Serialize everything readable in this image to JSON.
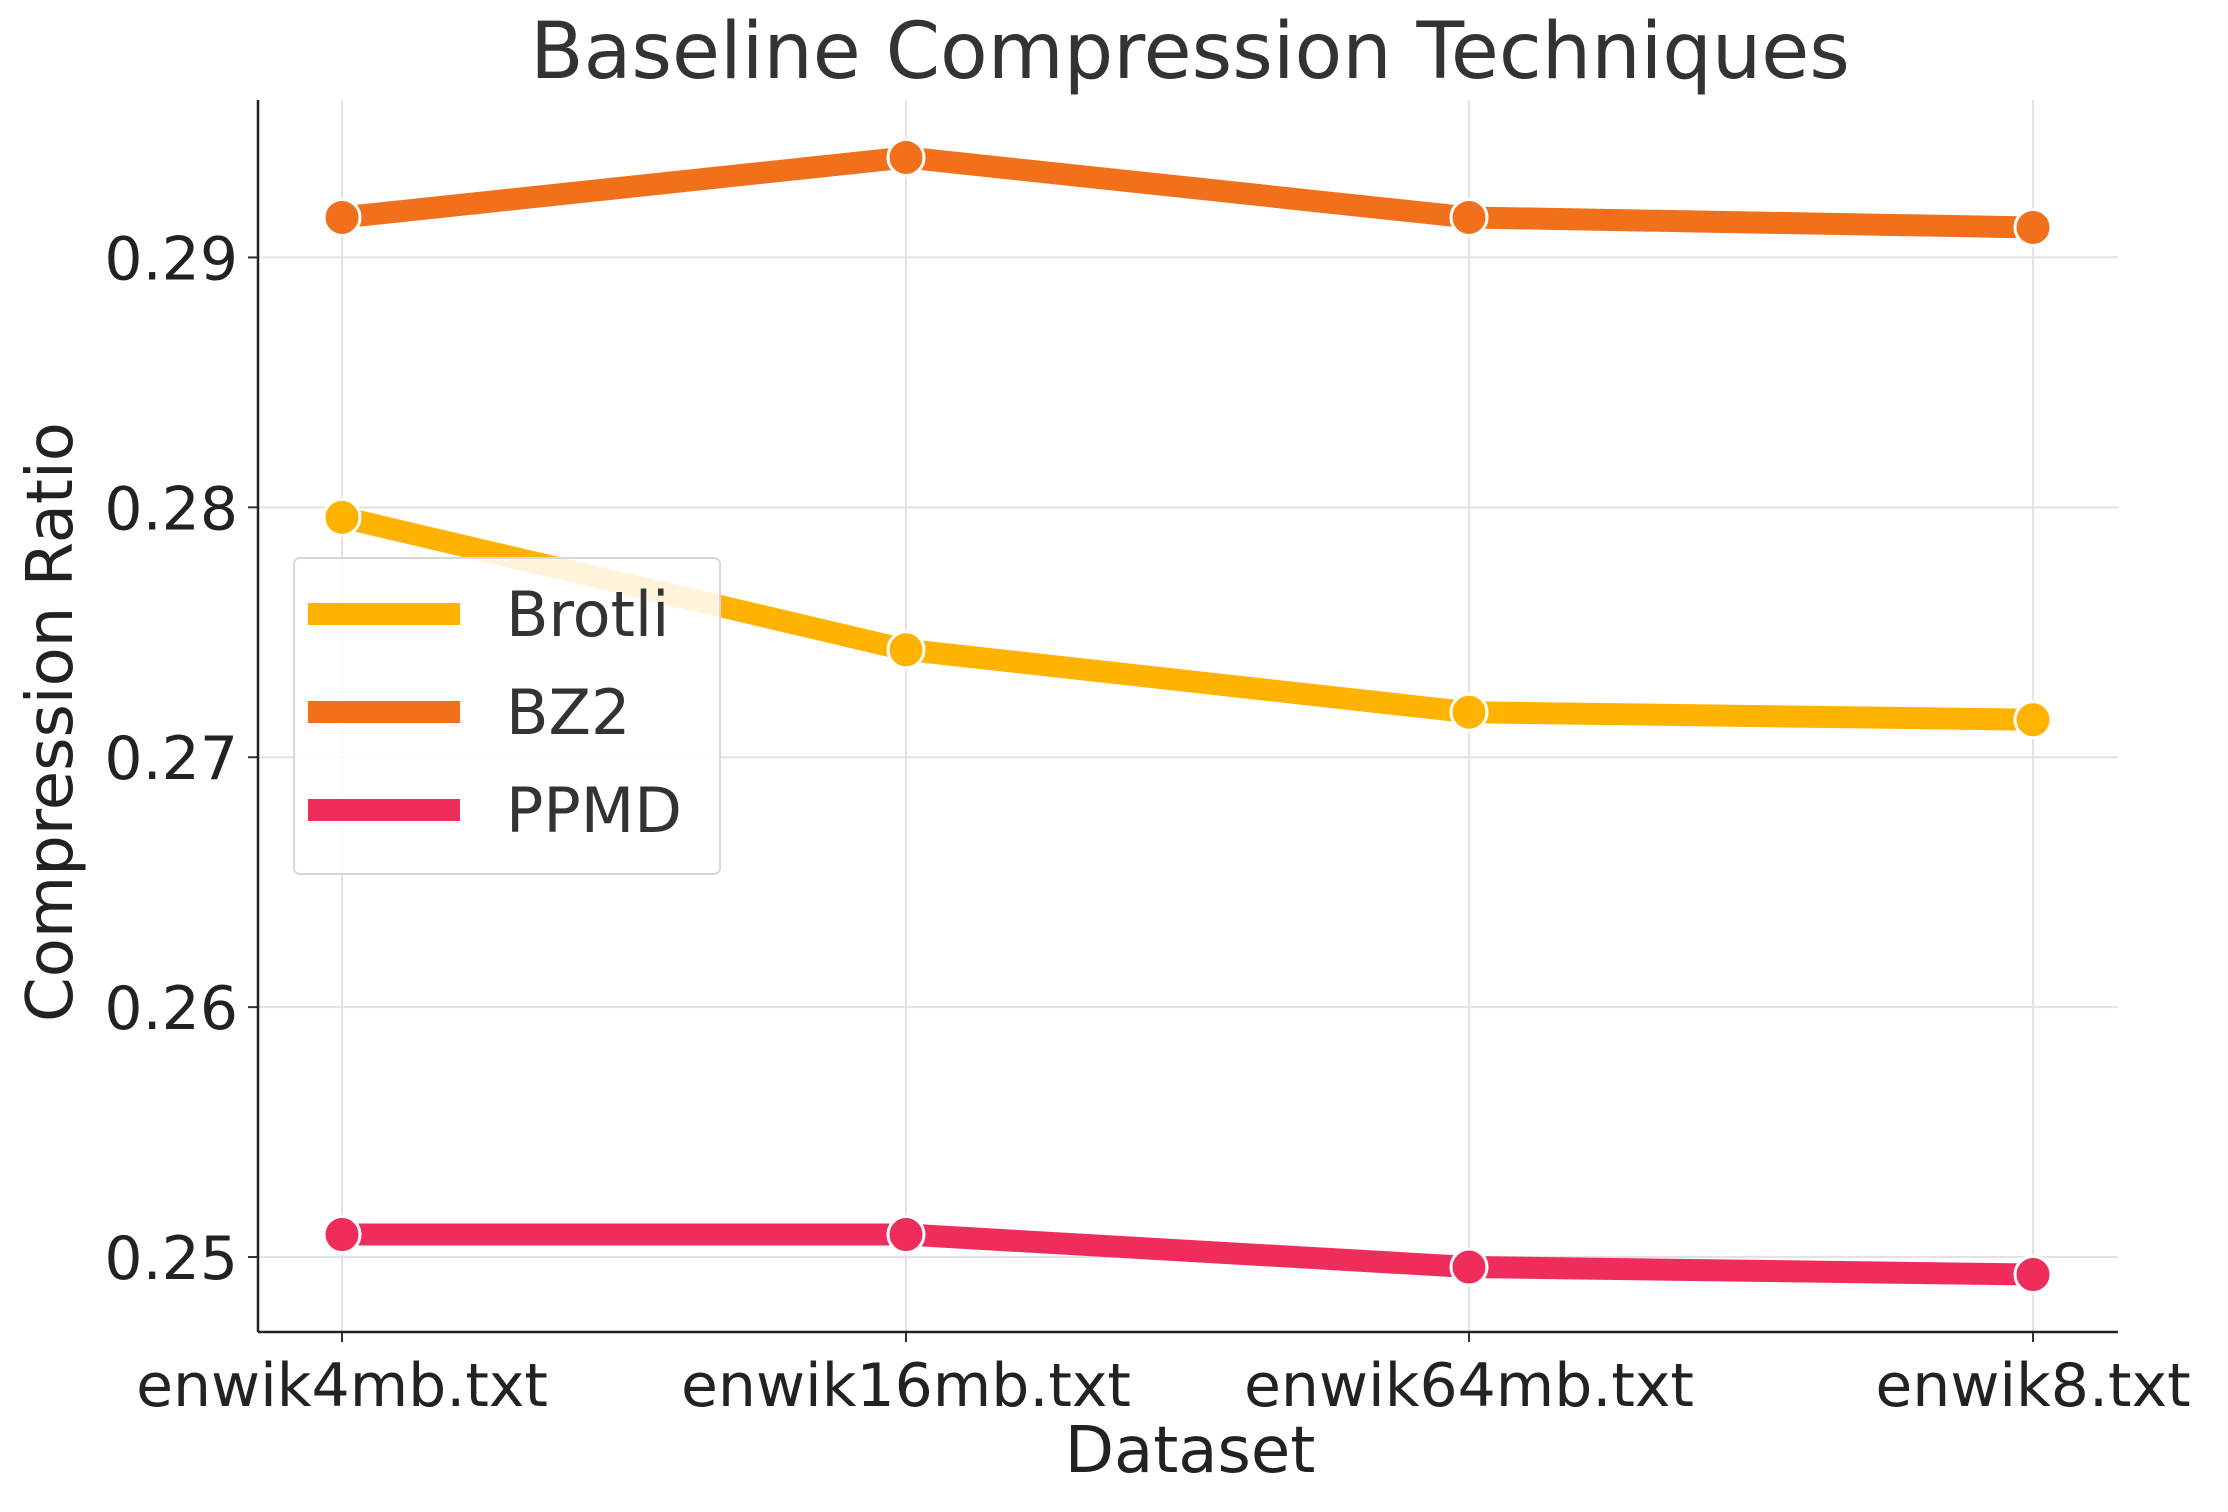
{
  "chart_data": {
    "type": "line",
    "title": "Baseline Compression Techniques",
    "xlabel": "Dataset",
    "ylabel": "Compression Ratio",
    "categories": [
      "enwik4mb.txt",
      "enwik16mb.txt",
      "enwik64mb.txt",
      "enwik8.txt"
    ],
    "yticks": [
      0.25,
      0.26,
      0.27,
      0.28,
      0.29
    ],
    "ylim": [
      0.247,
      0.2963
    ],
    "grid": true,
    "legend_position": "center-left",
    "series": [
      {
        "name": "Brotli",
        "color": "#ffb300",
        "values": [
          0.2796,
          0.2743,
          0.2718,
          0.2715
        ]
      },
      {
        "name": "BZ2",
        "color": "#f0701c",
        "values": [
          0.2916,
          0.294,
          0.2916,
          0.2912
        ]
      },
      {
        "name": "PPMD",
        "color": "#ee2d5c",
        "values": [
          0.2509,
          0.2509,
          0.2496,
          0.2493
        ]
      }
    ]
  }
}
